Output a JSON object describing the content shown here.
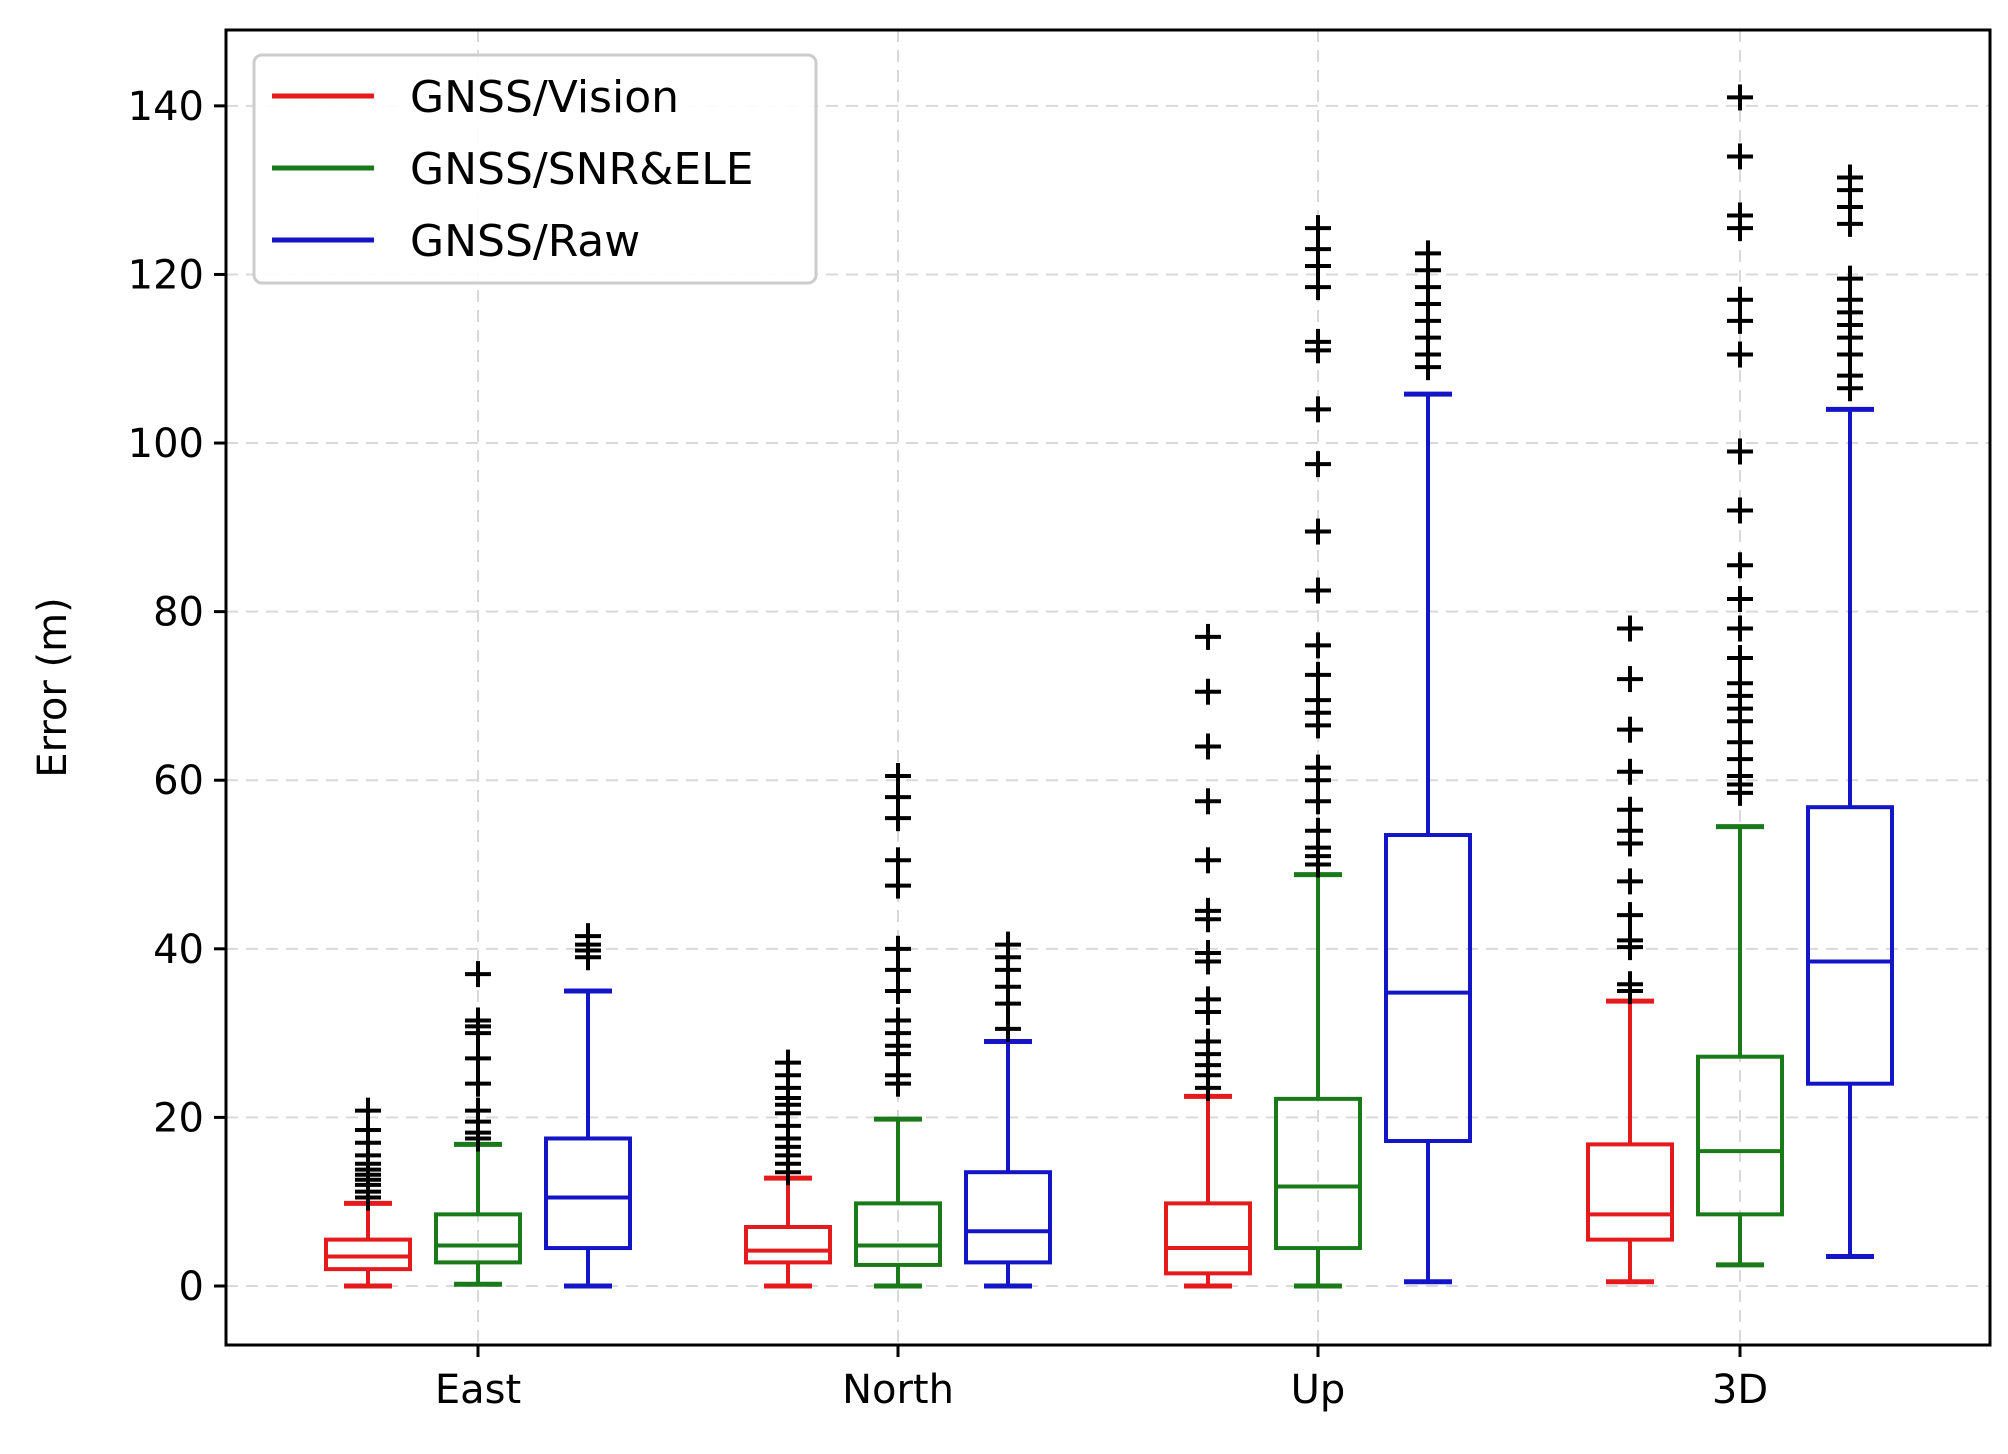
{
  "chart_data": {
    "type": "box",
    "ylabel": "Error (m)",
    "xlabel": "",
    "ylim": [
      -7,
      149
    ],
    "yticks": [
      0,
      20,
      40,
      60,
      80,
      100,
      120,
      140
    ],
    "grid": true,
    "legend_position": "top-left",
    "categories": [
      "East",
      "North",
      "Up",
      "3D"
    ],
    "series": [
      {
        "name": "GNSS/Vision",
        "color": "#e41a1c",
        "boxes": [
          {
            "whisker_low": 0,
            "q1": 2,
            "median": 3.5,
            "q3": 5.5,
            "whisker_high": 9.8,
            "outliers": [
              10.5,
              11.2,
              12,
              12.6,
              13.2,
              13.8,
              14.5,
              15.5,
              17,
              18.5,
              20.8
            ]
          },
          {
            "whisker_low": 0,
            "q1": 2.8,
            "median": 4.2,
            "q3": 7,
            "whisker_high": 12.8,
            "outliers": [
              13.5,
              14.5,
              15.5,
              16.5,
              17.5,
              19,
              20.5,
              21.5,
              22.3,
              23.5,
              25,
              26.5
            ]
          },
          {
            "whisker_low": 0,
            "q1": 1.5,
            "median": 4.5,
            "q3": 9.8,
            "whisker_high": 22.5,
            "outliers": [
              23.5,
              25,
              26.2,
              27.5,
              29,
              32.5,
              34,
              38.5,
              39.5,
              43.5,
              44.5,
              50.5,
              57.5,
              64,
              70.5,
              77
            ]
          },
          {
            "whisker_low": 0.5,
            "q1": 5.5,
            "median": 8.5,
            "q3": 16.8,
            "whisker_high": 33.8,
            "outliers": [
              35,
              35.8,
              40.2,
              41,
              44,
              48,
              52.5,
              54,
              56.5,
              61,
              66,
              72,
              78
            ]
          }
        ]
      },
      {
        "name": "GNSS/SNR&ELE",
        "color": "#1a7a1a",
        "boxes": [
          {
            "whisker_low": 0.2,
            "q1": 2.8,
            "median": 4.8,
            "q3": 8.5,
            "whisker_high": 16.8,
            "outliers": [
              17.5,
              18.2,
              19.5,
              20.8,
              24,
              27,
              30,
              30.8,
              31.5,
              37
            ]
          },
          {
            "whisker_low": 0,
            "q1": 2.5,
            "median": 4.8,
            "q3": 9.8,
            "whisker_high": 19.8,
            "outliers": [
              24,
              25,
              27.5,
              28.5,
              30,
              31.5,
              35,
              37.5,
              40,
              47.5,
              50.5,
              55.5,
              58,
              60.5
            ]
          },
          {
            "whisker_low": 0,
            "q1": 4.5,
            "median": 11.8,
            "q3": 22.2,
            "whisker_high": 48.8,
            "outliers": [
              50,
              51,
              52,
              54,
              57.5,
              60,
              61.5,
              66.5,
              68,
              69.5,
              72.5,
              76,
              82.5,
              89.5,
              97.5,
              104,
              111,
              112,
              118.5,
              121,
              123,
              125.5
            ]
          },
          {
            "whisker_low": 2.5,
            "q1": 8.5,
            "median": 16,
            "q3": 27.2,
            "whisker_high": 54.5,
            "outliers": [
              58.5,
              59.5,
              60.5,
              62.5,
              64.5,
              67,
              68.5,
              70,
              71.5,
              74.5,
              78,
              81.5,
              85.5,
              92,
              99,
              110.5,
              114.5,
              117,
              125.5,
              127,
              134,
              141
            ]
          }
        ]
      },
      {
        "name": "GNSS/Raw",
        "color": "#1515c8",
        "boxes": [
          {
            "whisker_low": 0,
            "q1": 4.5,
            "median": 10.5,
            "q3": 17.5,
            "whisker_high": 35,
            "outliers": [
              39,
              39.8,
              40.5,
              41.5
            ]
          },
          {
            "whisker_low": 0,
            "q1": 2.8,
            "median": 6.5,
            "q3": 13.5,
            "whisker_high": 29,
            "outliers": [
              30.5,
              33.5,
              35.5,
              37.5,
              39,
              40.5
            ]
          },
          {
            "whisker_low": 0.5,
            "q1": 17.2,
            "median": 34.8,
            "q3": 53.5,
            "whisker_high": 105.8,
            "outliers": [
              109,
              110.5,
              112.5,
              114.5,
              116.5,
              118.5,
              120.5,
              122.5
            ]
          },
          {
            "whisker_low": 3.5,
            "q1": 24,
            "median": 38.5,
            "q3": 56.8,
            "whisker_high": 104,
            "outliers": [
              106.5,
              108,
              110.5,
              112.5,
              114,
              115.5,
              117,
              119.5,
              126,
              128,
              130,
              131.5
            ]
          }
        ]
      }
    ]
  }
}
